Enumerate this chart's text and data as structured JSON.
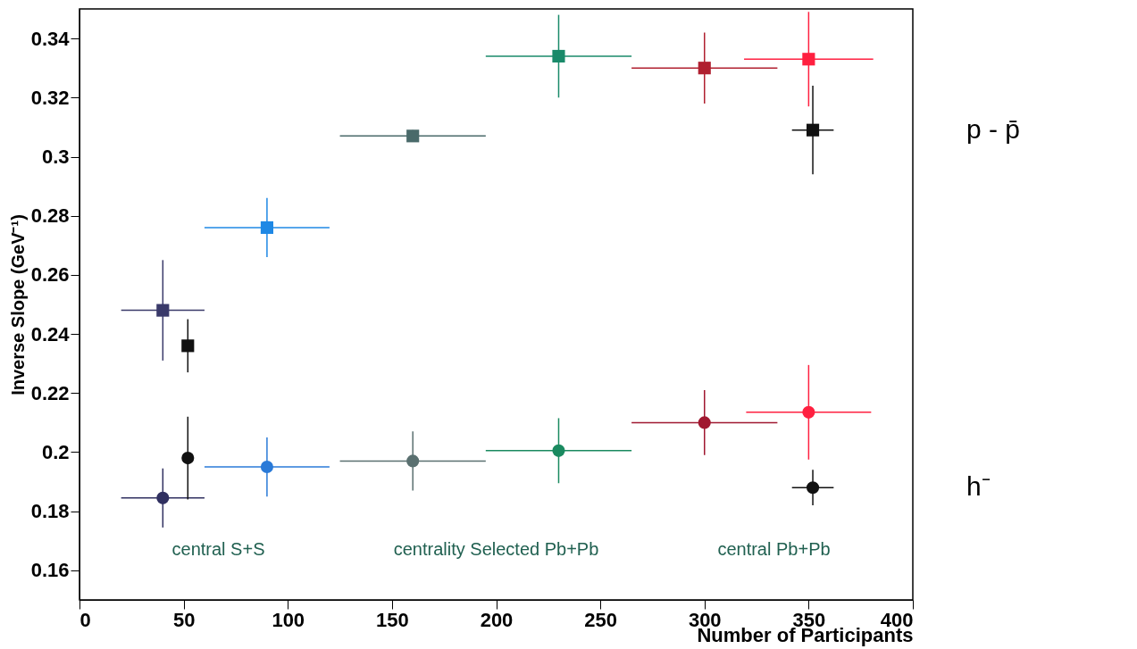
{
  "chart_data": {
    "type": "scatter",
    "xlabel": "Number of Participants",
    "ylabel": "Inverse Slope (GeV⁻¹)",
    "xlim": [
      0,
      400
    ],
    "xticks": [
      0,
      50,
      100,
      150,
      200,
      250,
      300,
      350,
      400
    ],
    "ylim": [
      0.15,
      0.35
    ],
    "yticks": [
      0.16,
      0.18,
      0.2,
      0.22,
      0.24,
      0.26,
      0.28,
      0.3,
      0.32,
      0.34
    ],
    "grid": false,
    "series": [
      {
        "name": "p - p̄",
        "marker": "square",
        "x": [
          40,
          52,
          90,
          160,
          230,
          300,
          350,
          352
        ],
        "values": [
          0.248,
          0.236,
          0.276,
          0.307,
          0.334,
          0.33,
          0.333,
          0.309
        ],
        "colors": [
          "#3a3a6a",
          "#111111",
          "#1e88e5",
          "#4a6a6a",
          "#1a8a6a",
          "#b02030",
          "#ff2040",
          "#111111"
        ],
        "errors": [
          0.017,
          0.009,
          0.01,
          0.002,
          0.014,
          0.012,
          0.016,
          0.015
        ],
        "xerrors": [
          20,
          null,
          30,
          35,
          35,
          35,
          31,
          10
        ]
      },
      {
        "name": "h⁻",
        "marker": "circle",
        "x": [
          40,
          52,
          90,
          160,
          230,
          300,
          350,
          352
        ],
        "values": [
          0.1845,
          0.198,
          0.195,
          0.197,
          0.2005,
          0.21,
          0.2135,
          0.188
        ],
        "colors": [
          "#303060",
          "#111111",
          "#2a7ad8",
          "#5a7070",
          "#1a8a60",
          "#a01830",
          "#ff2040",
          "#111111"
        ],
        "errors": [
          0.01,
          0.014,
          0.01,
          0.01,
          0.011,
          0.011,
          0.016,
          0.006
        ],
        "xerrors": [
          20,
          null,
          30,
          35,
          35,
          35,
          30,
          10
        ]
      }
    ],
    "annotations": [
      "central S+S",
      "centrality Selected Pb+Pb",
      "central Pb+Pb"
    ]
  }
}
